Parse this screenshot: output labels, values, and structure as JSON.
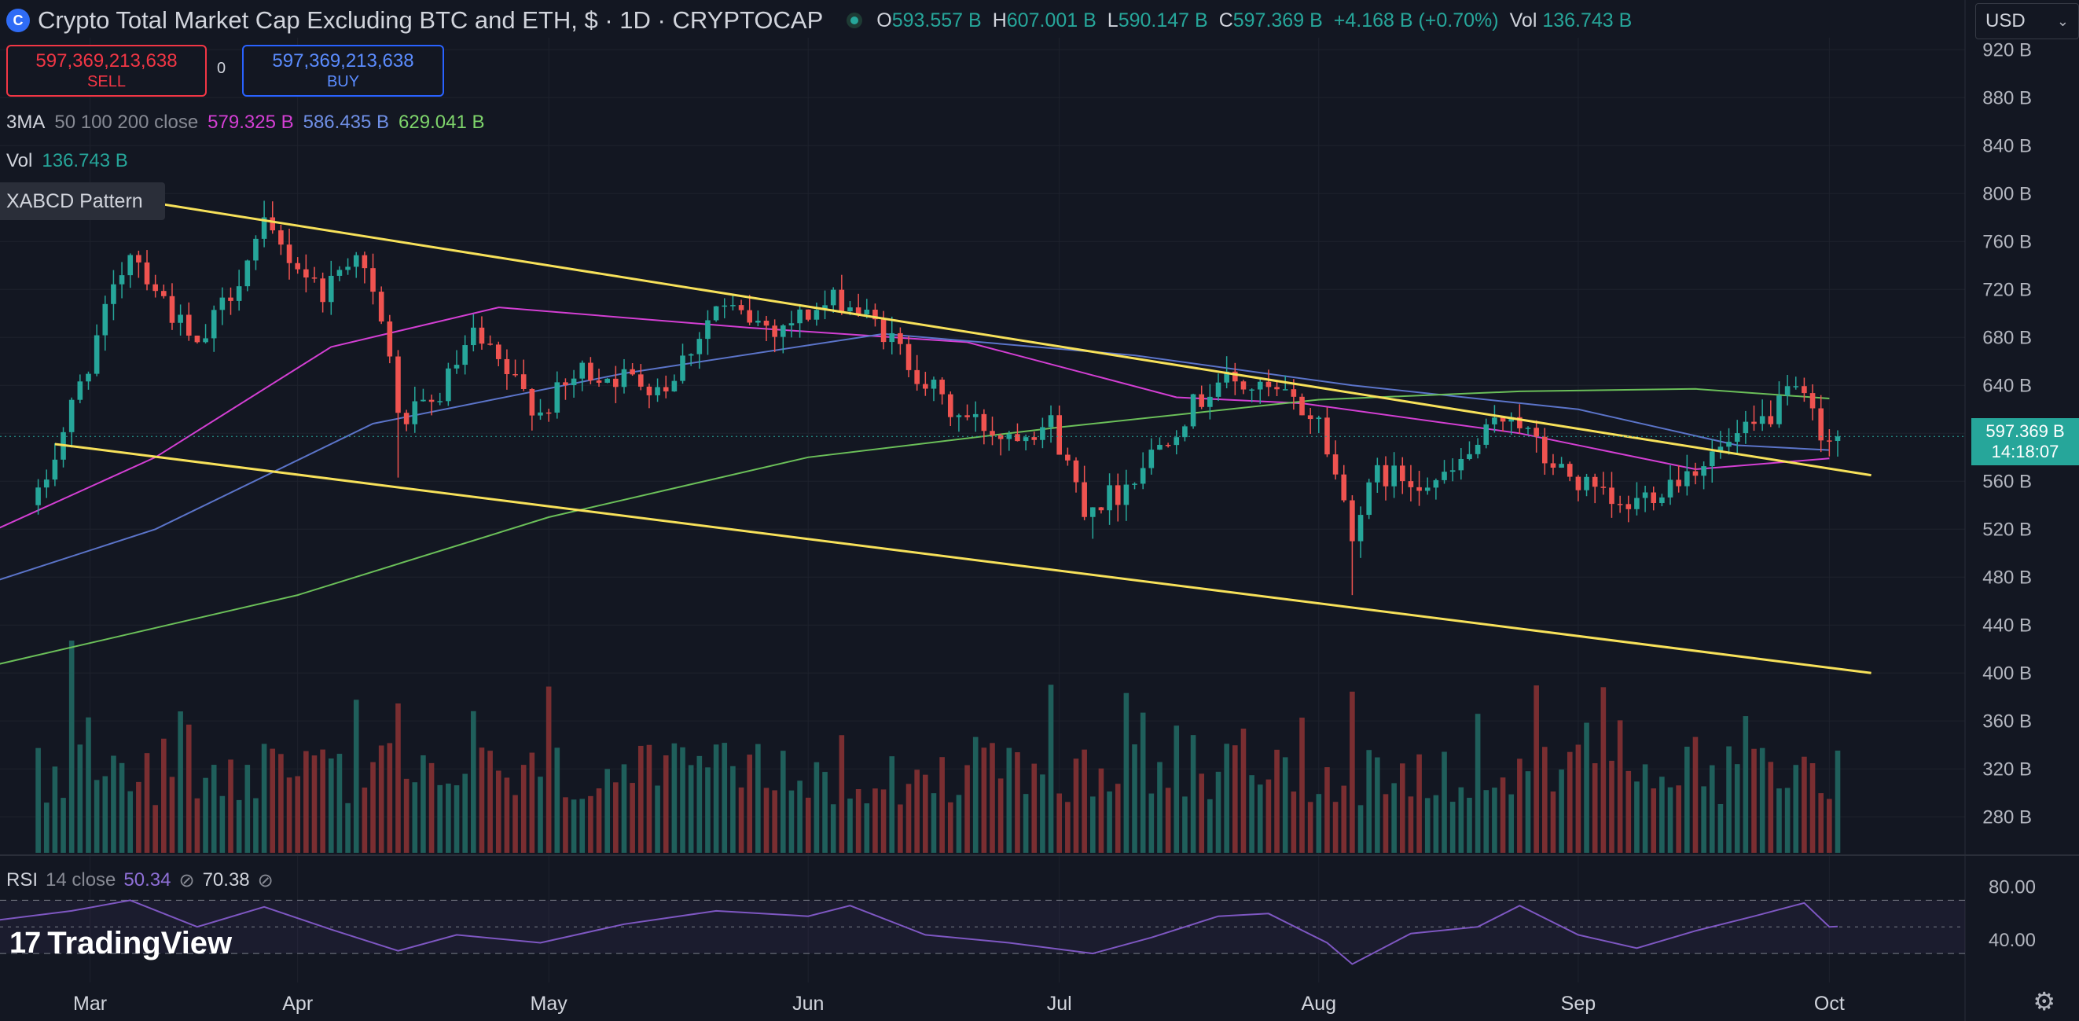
{
  "header": {
    "symbol_title": "Crypto Total Market Cap Excluding BTC and ETH, $ · 1D · CRYPTOCAP",
    "ohlc": [
      {
        "label": "O",
        "value": "593.557 B"
      },
      {
        "label": "H",
        "value": "607.001 B"
      },
      {
        "label": "L",
        "value": "590.147 B"
      },
      {
        "label": "C",
        "value": "597.369 B"
      }
    ],
    "change": "+4.168 B (+0.70%)",
    "vol_label": "Vol",
    "vol_value": "136.743 B",
    "currency": "USD"
  },
  "trade": {
    "sell_price": "597,369,213,638",
    "sell_label": "SELL",
    "spread": "0",
    "buy_price": "597,369,213,638",
    "buy_label": "BUY"
  },
  "indicators": {
    "ma_name": "3MA",
    "ma_params": "50 100 200 close",
    "ma_values": [
      "579.325 B",
      "586.435 B",
      "629.041 B"
    ],
    "vol_label": "Vol",
    "vol_value": "136.743 B",
    "pattern_label": "XABCD Pattern",
    "rsi_name": "RSI",
    "rsi_params": "14 close",
    "rsi_value": "50.34",
    "rsi_ma_value": "70.38"
  },
  "price_tag": {
    "price": "597.369 B",
    "countdown": "14:18:07"
  },
  "watermark": "TradingView",
  "colors": {
    "background": "#131722",
    "up": "#26a69a",
    "down": "#ef5350",
    "ma50": "#d33fd3",
    "ma100": "#5b74c9",
    "ma200": "#6bbf59",
    "trendline": "#f7e15a",
    "rsi": "#7e57c2"
  },
  "chart_data": {
    "type": "candlestick",
    "x_ticks": [
      "Mar",
      "Apr",
      "May",
      "Jun",
      "Jul",
      "Aug",
      "Sep",
      "Oct"
    ],
    "y_ticks": [
      "920 B",
      "880 B",
      "840 B",
      "800 B",
      "760 B",
      "720 B",
      "680 B",
      "640 B",
      "600 B",
      "560 B",
      "520 B",
      "480 B",
      "440 B",
      "400 B",
      "360 B",
      "320 B",
      "280 B"
    ],
    "y_unit": "B",
    "ylim": [
      250,
      930
    ],
    "anchors": [
      {
        "date": "2024-03-01",
        "close": 545
      },
      {
        "date": "2024-03-12",
        "close": 755
      },
      {
        "date": "2024-03-20",
        "close": 668
      },
      {
        "date": "2024-03-28",
        "close": 770
      },
      {
        "date": "2024-04-04",
        "close": 718
      },
      {
        "date": "2024-04-08",
        "close": 755
      },
      {
        "date": "2024-04-12",
        "close": 668
      },
      {
        "date": "2024-04-13",
        "close": 610
      },
      {
        "date": "2024-04-17",
        "close": 622
      },
      {
        "date": "2024-04-22",
        "close": 680
      },
      {
        "date": "2024-04-30",
        "close": 618
      },
      {
        "date": "2024-05-05",
        "close": 652
      },
      {
        "date": "2024-05-15",
        "close": 640
      },
      {
        "date": "2024-05-21",
        "close": 705
      },
      {
        "date": "2024-05-28",
        "close": 688
      },
      {
        "date": "2024-06-05",
        "close": 712
      },
      {
        "date": "2024-06-10",
        "close": 685
      },
      {
        "date": "2024-06-18",
        "close": 618
      },
      {
        "date": "2024-06-24",
        "close": 600
      },
      {
        "date": "2024-06-30",
        "close": 608
      },
      {
        "date": "2024-07-04",
        "close": 540
      },
      {
        "date": "2024-07-08",
        "close": 550
      },
      {
        "date": "2024-07-14",
        "close": 600
      },
      {
        "date": "2024-07-20",
        "close": 645
      },
      {
        "date": "2024-07-28",
        "close": 630
      },
      {
        "date": "2024-08-01",
        "close": 610
      },
      {
        "date": "2024-08-05",
        "close": 520
      },
      {
        "date": "2024-08-08",
        "close": 565
      },
      {
        "date": "2024-08-16",
        "close": 560
      },
      {
        "date": "2024-08-24",
        "close": 620
      },
      {
        "date": "2024-08-28",
        "close": 578
      },
      {
        "date": "2024-09-06",
        "close": 535
      },
      {
        "date": "2024-09-15",
        "close": 573
      },
      {
        "date": "2024-09-22",
        "close": 603
      },
      {
        "date": "2024-09-27",
        "close": 635
      },
      {
        "date": "2024-09-30",
        "close": 604
      },
      {
        "date": "2024-10-01",
        "close": 593
      },
      {
        "date": "2024-10-02",
        "close": 597.4
      }
    ],
    "ma_lines": [
      {
        "name": "50",
        "points": [
          [
            "2024-02-25",
            520
          ],
          [
            "2024-03-15",
            580
          ],
          [
            "2024-04-05",
            672
          ],
          [
            "2024-04-25",
            705
          ],
          [
            "2024-05-25",
            688
          ],
          [
            "2024-06-20",
            676
          ],
          [
            "2024-07-15",
            630
          ],
          [
            "2024-07-30",
            625
          ],
          [
            "2024-08-25",
            600
          ],
          [
            "2024-09-15",
            570
          ],
          [
            "2024-10-01",
            579
          ]
        ]
      },
      {
        "name": "100",
        "points": [
          [
            "2024-02-25",
            477
          ],
          [
            "2024-03-15",
            520
          ],
          [
            "2024-04-10",
            608
          ],
          [
            "2024-05-10",
            650
          ],
          [
            "2024-06-10",
            683
          ],
          [
            "2024-07-10",
            665
          ],
          [
            "2024-08-05",
            640
          ],
          [
            "2024-09-01",
            620
          ],
          [
            "2024-09-20",
            590
          ],
          [
            "2024-10-01",
            586
          ]
        ]
      },
      {
        "name": "200",
        "points": [
          [
            "2024-02-25",
            407
          ],
          [
            "2024-04-01",
            465
          ],
          [
            "2024-05-01",
            530
          ],
          [
            "2024-06-01",
            580
          ],
          [
            "2024-07-01",
            605
          ],
          [
            "2024-08-01",
            628
          ],
          [
            "2024-08-25",
            635
          ],
          [
            "2024-09-15",
            637
          ],
          [
            "2024-10-01",
            629
          ]
        ]
      }
    ],
    "trendlines": [
      {
        "name": "upper",
        "start": [
          "2024-03-06",
          802
        ],
        "end": [
          "2024-10-06",
          565
        ]
      },
      {
        "name": "lower",
        "start": [
          "2024-03-03",
          591
        ],
        "end": [
          "2024-10-06",
          400
        ]
      }
    ],
    "rsi": {
      "ylim": [
        20,
        85
      ],
      "y_ticks": [
        "80.00",
        "40.00"
      ],
      "bands": [
        70,
        50,
        30
      ],
      "points": [
        [
          "2024-02-25",
          55
        ],
        [
          "2024-03-05",
          62
        ],
        [
          "2024-03-12",
          70
        ],
        [
          "2024-03-20",
          50
        ],
        [
          "2024-03-28",
          65
        ],
        [
          "2024-04-05",
          48
        ],
        [
          "2024-04-13",
          32
        ],
        [
          "2024-04-20",
          44
        ],
        [
          "2024-04-30",
          38
        ],
        [
          "2024-05-10",
          52
        ],
        [
          "2024-05-21",
          62
        ],
        [
          "2024-06-01",
          58
        ],
        [
          "2024-06-06",
          66
        ],
        [
          "2024-06-15",
          44
        ],
        [
          "2024-06-25",
          38
        ],
        [
          "2024-07-05",
          30
        ],
        [
          "2024-07-12",
          42
        ],
        [
          "2024-07-20",
          58
        ],
        [
          "2024-07-26",
          60
        ],
        [
          "2024-08-02",
          38
        ],
        [
          "2024-08-05",
          22
        ],
        [
          "2024-08-12",
          45
        ],
        [
          "2024-08-20",
          50
        ],
        [
          "2024-08-25",
          66
        ],
        [
          "2024-09-01",
          44
        ],
        [
          "2024-09-08",
          34
        ],
        [
          "2024-09-15",
          47
        ],
        [
          "2024-09-22",
          58
        ],
        [
          "2024-09-28",
          68
        ],
        [
          "2024-10-01",
          50
        ],
        [
          "2024-10-02",
          50.3
        ]
      ]
    }
  }
}
